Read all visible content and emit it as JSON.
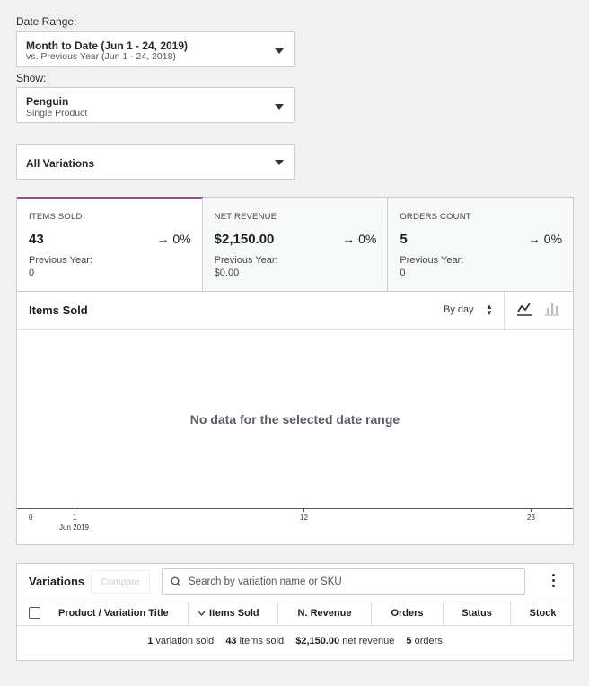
{
  "filters": {
    "date_range_label": "Date Range:",
    "date_range_main": "Month to Date (Jun 1 - 24, 2019)",
    "date_range_sub": "vs. Previous Year (Jun 1 - 24, 2018)",
    "show_label": "Show:",
    "show_main": "Penguin",
    "show_sub": "Single Product",
    "variations_value": "All Variations"
  },
  "summary": [
    {
      "label": "ITEMS SOLD",
      "value": "43",
      "delta": "→ 0%",
      "prev_label": "Previous Year:",
      "prev_value": "0"
    },
    {
      "label": "NET REVENUE",
      "value": "$2,150.00",
      "delta": "→ 0%",
      "prev_label": "Previous Year:",
      "prev_value": "$0.00"
    },
    {
      "label": "ORDERS COUNT",
      "value": "5",
      "delta": "→ 0%",
      "prev_label": "Previous Year:",
      "prev_value": "0"
    }
  ],
  "chart": {
    "title": "Items Sold",
    "interval": "By day",
    "no_data": "No data for the selected date range",
    "icons": {
      "line": "line-chart-icon",
      "bar": "bar-chart-icon"
    },
    "ticks": [
      "0",
      "1",
      "12",
      "23"
    ],
    "month_label": "Jun 2019"
  },
  "chart_data": {
    "type": "line",
    "title": "Items Sold",
    "x": [
      "0",
      "1",
      "12",
      "23"
    ],
    "series": [],
    "xlabel": "",
    "ylabel": "",
    "annotation": "No data for the selected date range",
    "sublabel": "Jun 2019"
  },
  "variations": {
    "title": "Variations",
    "compare_label": "Compare",
    "search_placeholder": "Search by variation name or SKU",
    "columns": [
      "Product / Variation Title",
      "Items Sold",
      "N. Revenue",
      "Orders",
      "Status",
      "Stock"
    ],
    "sorted_column": "Items Sold",
    "footer": {
      "variations_count": "1",
      "variations_text": "variation sold",
      "items_count": "43",
      "items_text": "items sold",
      "revenue": "$2,150.00",
      "revenue_text": "net revenue",
      "orders_count": "5",
      "orders_text": "orders"
    }
  },
  "colors": {
    "accent": "#95588a",
    "border": "#cccccc",
    "background": "#f1f1f1"
  }
}
